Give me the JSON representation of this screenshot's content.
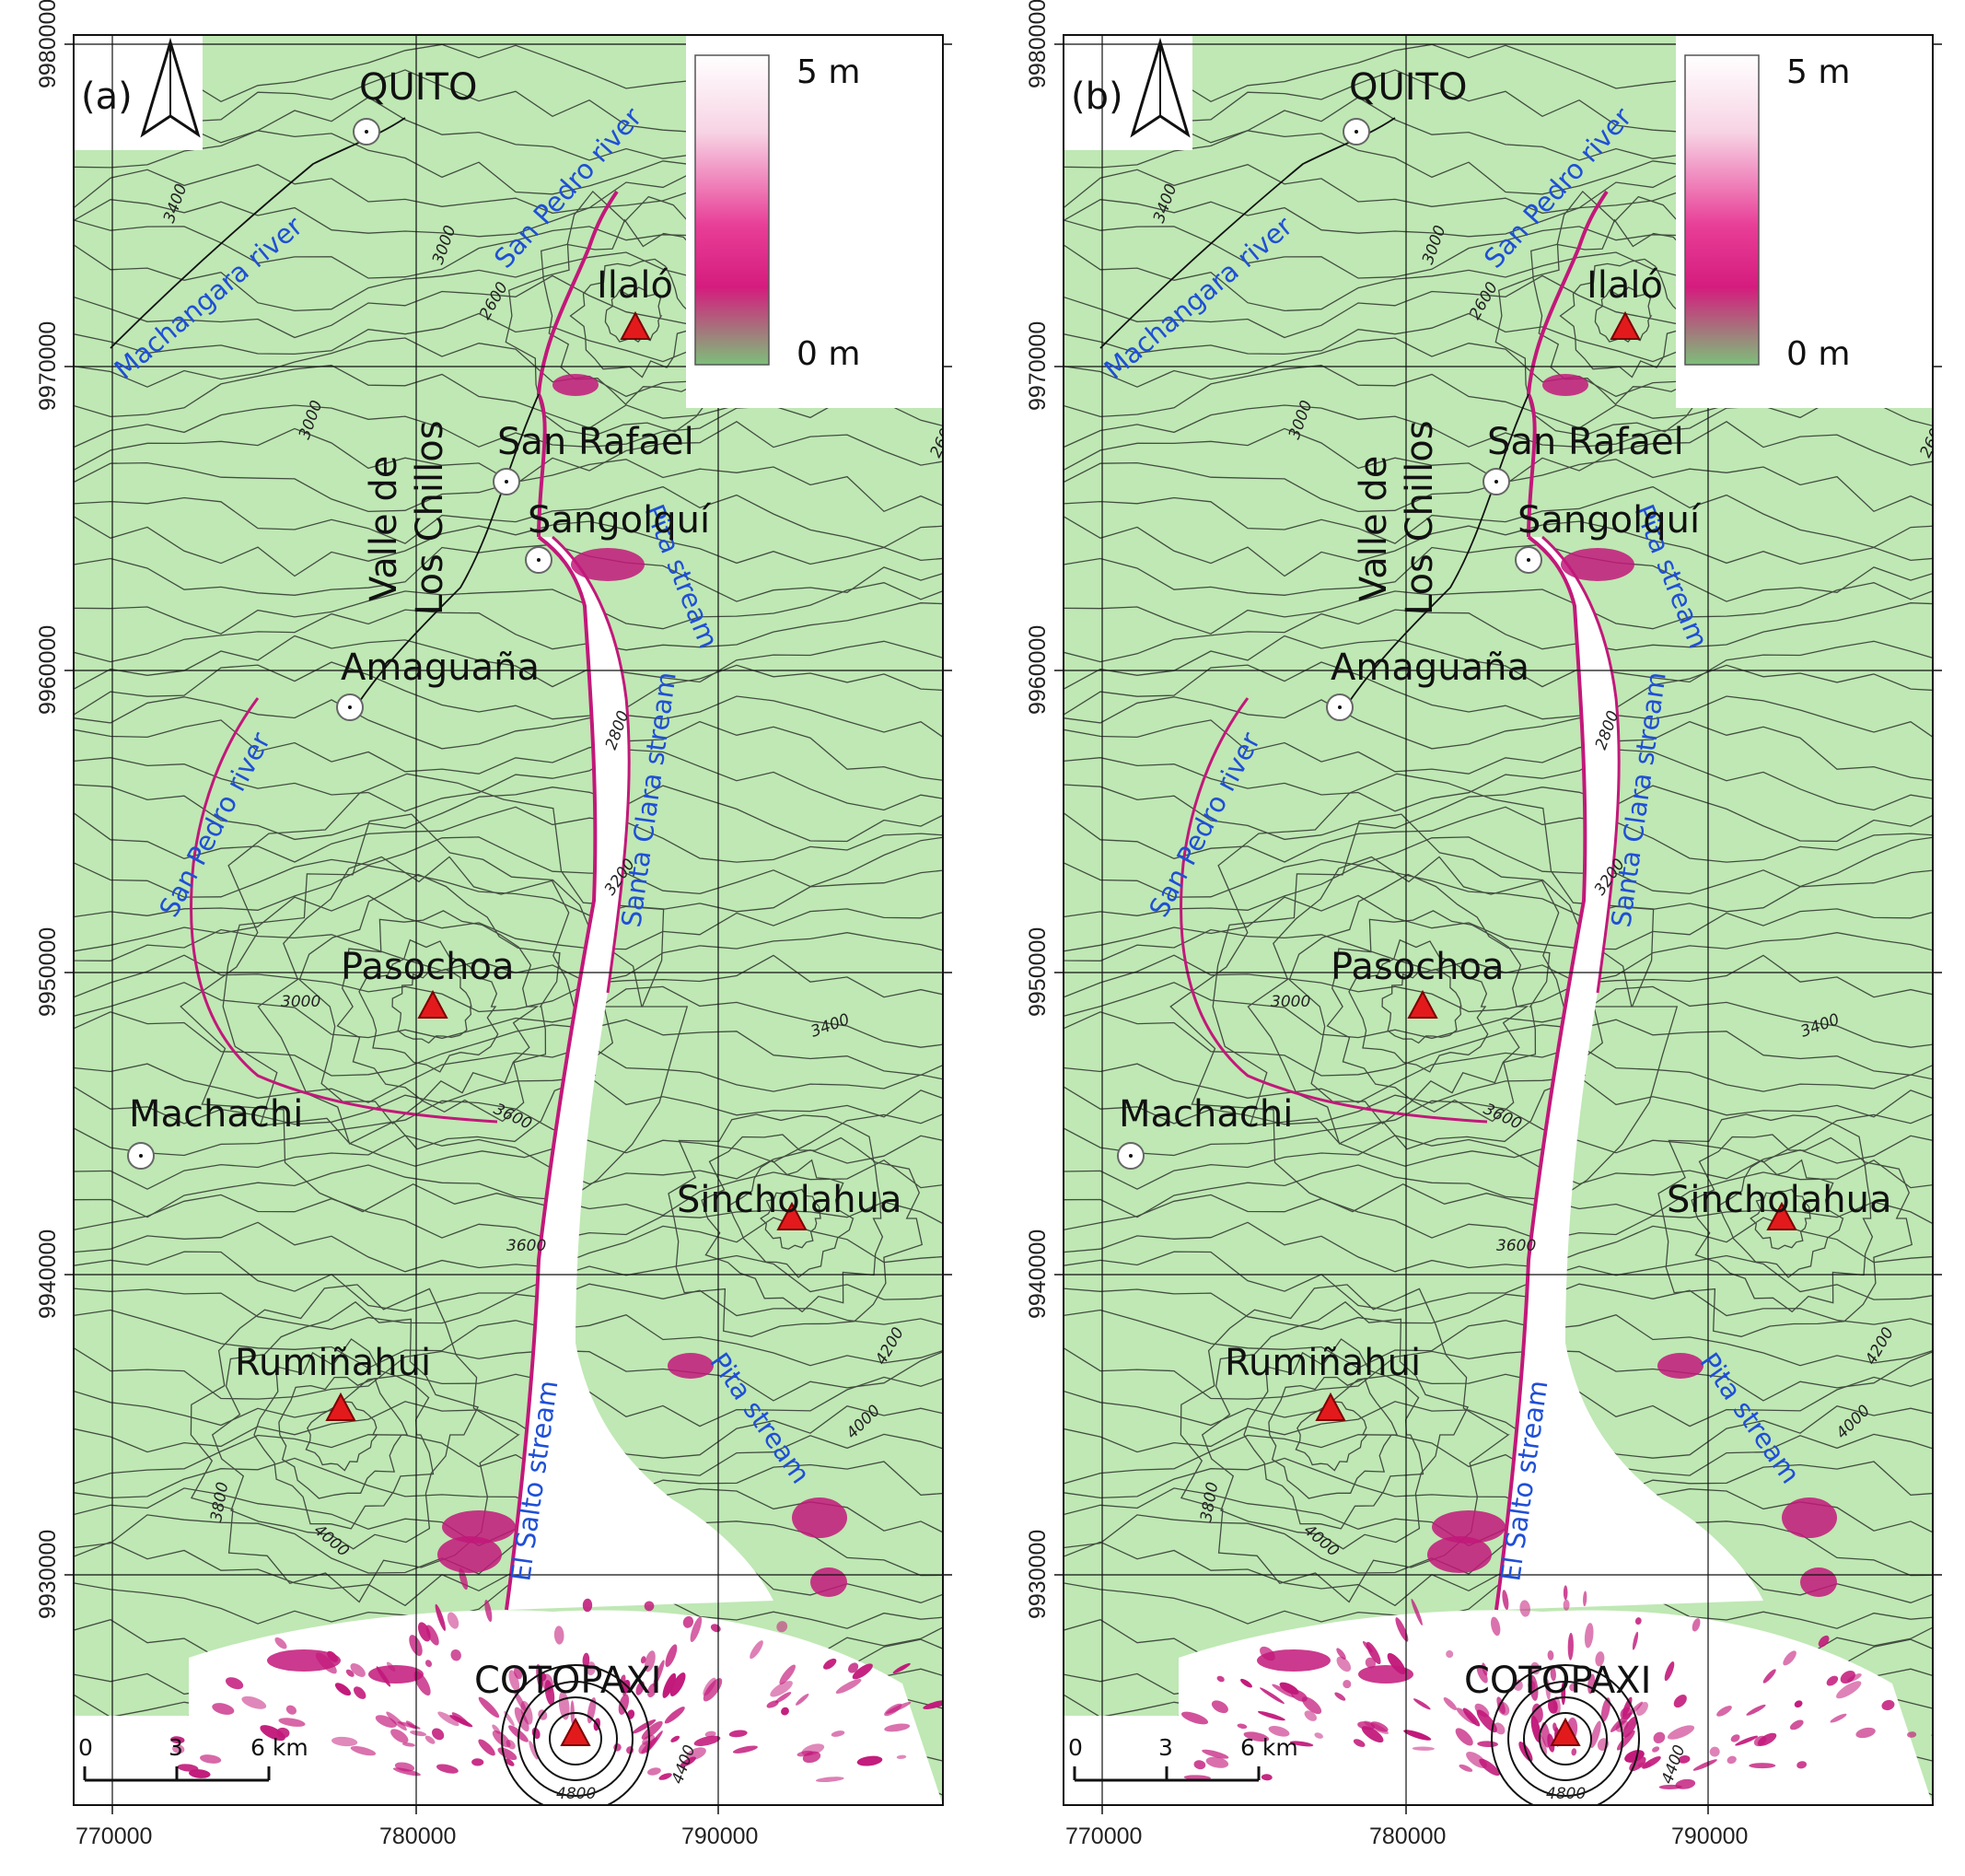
{
  "panels": [
    {
      "id": "a",
      "label": "(a)"
    },
    {
      "id": "b",
      "label": "(b)"
    }
  ],
  "axes": {
    "x_ticks": [
      "770000",
      "780000",
      "790000"
    ],
    "y_ticks": [
      "9980000",
      "9970000",
      "9960000",
      "9950000",
      "9940000",
      "9930000"
    ]
  },
  "legend": {
    "max_label": "5 m",
    "min_label": "0 m",
    "color_high": "#ffffff",
    "color_mid": "#e0147a",
    "color_low": "#7dbf7a"
  },
  "scale_bar": {
    "labels": [
      "0",
      "3",
      "6 km"
    ]
  },
  "places": [
    {
      "name": "QUITO",
      "kind": "town"
    },
    {
      "name": "Ilaló",
      "kind": "peak"
    },
    {
      "name": "San Rafael",
      "kind": "town"
    },
    {
      "name": "Sangolquí",
      "kind": "town"
    },
    {
      "name": "Amaguaña",
      "kind": "town"
    },
    {
      "name": "Pasochoa",
      "kind": "peak"
    },
    {
      "name": "Machachi",
      "kind": "town"
    },
    {
      "name": "Sincholahua",
      "kind": "peak"
    },
    {
      "name": "Rumiñahui",
      "kind": "peak"
    },
    {
      "name": "COTOPAXI",
      "kind": "peak"
    }
  ],
  "valley_label": {
    "line1": "Valle de",
    "line2": "Los Chillos"
  },
  "rivers": [
    "Machangara river",
    "San Pedro river",
    "San Pedro river",
    "Pita stream",
    "Santa Clara stream",
    "El Salto stream",
    "Pita stream"
  ],
  "contour_labels": [
    "3400",
    "3000",
    "2600",
    "3000",
    "2600",
    "2800",
    "3200",
    "3000",
    "3600",
    "3400",
    "3400",
    "3600",
    "4200",
    "4000",
    "3800",
    "4000",
    "4800",
    "4400",
    "3800"
  ],
  "colors": {
    "land": "#bfe8b4",
    "contour": "#1a1a1a",
    "river_text": "#1f4fd6",
    "peak": "#e31a1c",
    "flow": "#c2187a"
  }
}
